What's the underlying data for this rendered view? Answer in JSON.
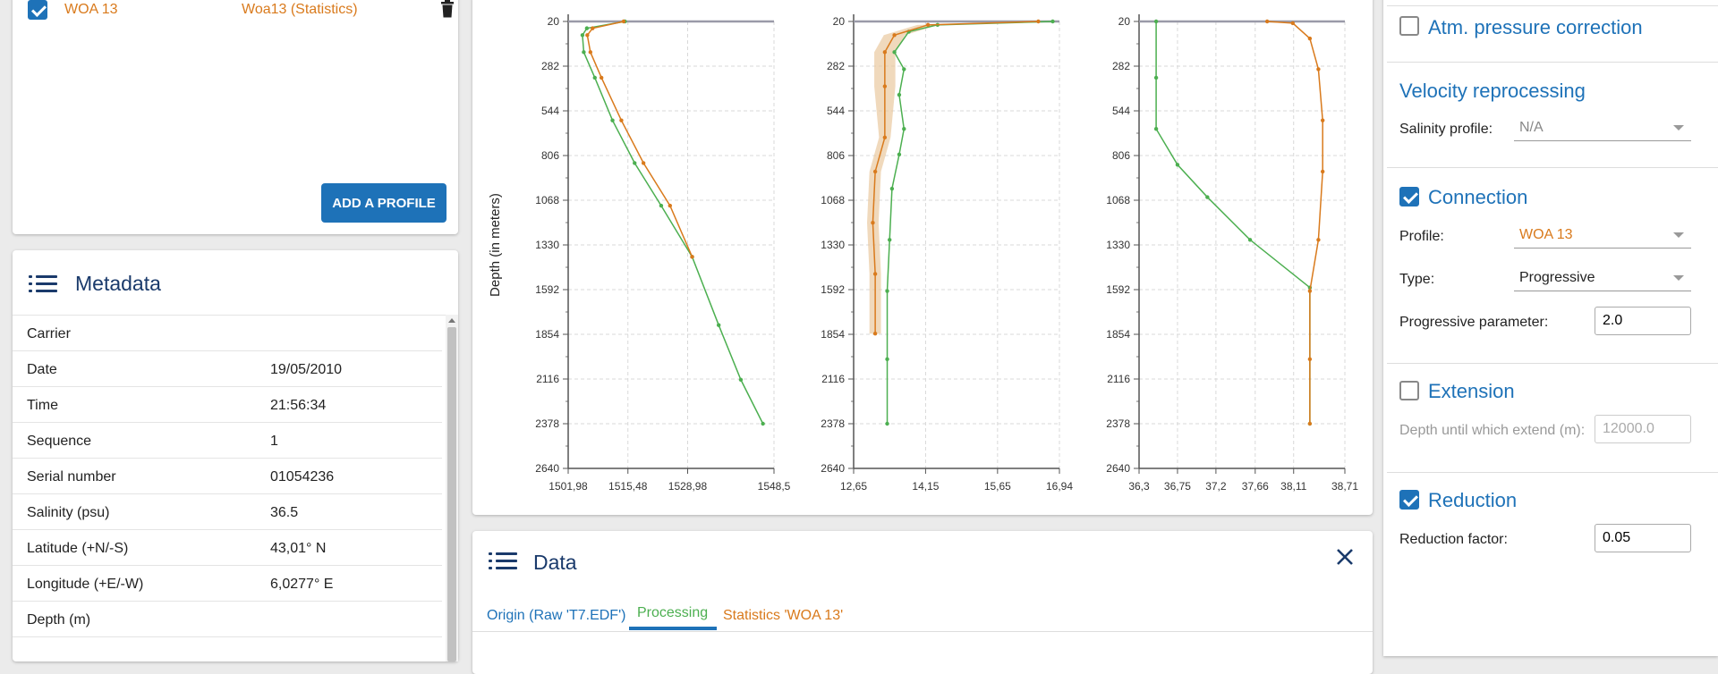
{
  "profiles": {
    "items": [
      {
        "name": "WOA 13",
        "source": "Woa13 (Statistics)",
        "checked": true
      }
    ],
    "add_button": "ADD A PROFILE"
  },
  "metadata": {
    "title": "Metadata",
    "rows": [
      {
        "key": "Carrier",
        "value": ""
      },
      {
        "key": "Date",
        "value": "19/05/2010"
      },
      {
        "key": "Time",
        "value": "21:56:34"
      },
      {
        "key": "Sequence",
        "value": "1"
      },
      {
        "key": "Serial number",
        "value": "01054236"
      },
      {
        "key": "Salinity (psu)",
        "value": "36.5"
      },
      {
        "key": "Latitude (+N/-S)",
        "value": "43,01° N"
      },
      {
        "key": "Longitude (+E/-W)",
        "value": "6,0277° E"
      },
      {
        "key": "Depth (m)",
        "value": ""
      }
    ]
  },
  "charts": {
    "depth_label": "Depth (in meters)",
    "depth_ticks": [
      "20",
      "282",
      "544",
      "806",
      "1068",
      "1330",
      "1592",
      "1854",
      "2116",
      "2378",
      "2640"
    ],
    "panels": [
      {
        "x_ticks": [
          "1501,98",
          "1515,48",
          "1528,98",
          "1548,5"
        ]
      },
      {
        "x_ticks": [
          "12,65",
          "14,15",
          "15,65",
          "16,94"
        ]
      },
      {
        "x_ticks": [
          "36,3",
          "36,75",
          "37,2",
          "37,66",
          "38,11",
          "38,71"
        ]
      }
    ]
  },
  "chart_data": [
    {
      "type": "line",
      "xlim": [
        1501.98,
        1548.5
      ],
      "ylim": [
        20,
        2640
      ],
      "y_axis_inverted": true,
      "series": [
        {
          "color": "#4caf50",
          "points": [
            [
              1514.8,
              20
            ],
            [
              1506.2,
              60
            ],
            [
              1505.2,
              100
            ],
            [
              1505.5,
              200
            ],
            [
              1508,
              350
            ],
            [
              1512,
              600
            ],
            [
              1517,
              850
            ],
            [
              1523,
              1100
            ],
            [
              1530,
              1400
            ],
            [
              1536,
              1800
            ],
            [
              1541,
              2120
            ],
            [
              1546,
              2378
            ]
          ]
        },
        {
          "color": "#d97a1c",
          "points": [
            [
              1514.5,
              20
            ],
            [
              1507.5,
              60
            ],
            [
              1506.3,
              100
            ],
            [
              1507,
              200
            ],
            [
              1509.5,
              350
            ],
            [
              1514,
              600
            ],
            [
              1519,
              850
            ],
            [
              1525,
              1100
            ],
            [
              1530,
              1400
            ]
          ]
        }
      ]
    },
    {
      "type": "line",
      "xlim": [
        12.65,
        16.94
      ],
      "ylim": [
        20,
        2640
      ],
      "y_axis_inverted": true,
      "series": [
        {
          "color": "#4caf50",
          "points": [
            [
              16.8,
              20
            ],
            [
              14.4,
              40
            ],
            [
              13.8,
              80
            ],
            [
              13.5,
              200
            ],
            [
              13.7,
              300
            ],
            [
              13.6,
              450
            ],
            [
              13.7,
              650
            ],
            [
              13.6,
              800
            ],
            [
              13.45,
              1000
            ],
            [
              13.4,
              1300
            ],
            [
              13.35,
              1600
            ],
            [
              13.35,
              2000
            ],
            [
              13.35,
              2378
            ]
          ]
        },
        {
          "color": "#d97a1c",
          "points": [
            [
              16.5,
              20
            ],
            [
              14.2,
              40
            ],
            [
              13.5,
              100
            ],
            [
              13.3,
              200
            ],
            [
              13.3,
              400
            ],
            [
              13.3,
              700
            ],
            [
              13.1,
              900
            ],
            [
              13.05,
              1200
            ],
            [
              13.1,
              1500
            ],
            [
              13.1,
              1850
            ]
          ]
        }
      ],
      "band": {
        "color": "#e9c9a0"
      }
    },
    {
      "type": "line",
      "xlim": [
        36.3,
        38.71
      ],
      "ylim": [
        20,
        2640
      ],
      "y_axis_inverted": true,
      "series": [
        {
          "color": "#4caf50",
          "points": [
            [
              36.5,
              20
            ],
            [
              36.5,
              350
            ],
            [
              36.5,
              650
            ],
            [
              36.75,
              860
            ],
            [
              37.1,
              1050
            ],
            [
              37.6,
              1300
            ],
            [
              38.3,
              1580
            ],
            [
              38.3,
              2378
            ]
          ]
        },
        {
          "color": "#d97a1c",
          "points": [
            [
              37.8,
              20
            ],
            [
              38.1,
              30
            ],
            [
              38.3,
              120
            ],
            [
              38.4,
              300
            ],
            [
              38.45,
              600
            ],
            [
              38.45,
              900
            ],
            [
              38.4,
              1300
            ],
            [
              38.3,
              1600
            ],
            [
              38.3,
              2000
            ],
            [
              38.3,
              2378
            ]
          ]
        }
      ]
    }
  ],
  "data_panel": {
    "title": "Data",
    "tabs": [
      {
        "label": "Origin (Raw 'T7.EDF')",
        "color": "#1e72b8"
      },
      {
        "label": "Processing",
        "color": "#4caf50",
        "active": true
      },
      {
        "label": "Statistics 'WOA 13'",
        "color": "#d97a1c"
      }
    ]
  },
  "settings": {
    "atm_pressure": {
      "label": "Atm. pressure correction",
      "checked": false
    },
    "velocity": {
      "title": "Velocity reprocessing",
      "salinity_label": "Salinity profile:",
      "salinity_value": "N/A"
    },
    "connection": {
      "label": "Connection",
      "checked": true,
      "profile_label": "Profile:",
      "profile_value": "WOA 13",
      "type_label": "Type:",
      "type_value": "Progressive",
      "param_label": "Progressive parameter:",
      "param_value": "2.0"
    },
    "extension": {
      "label": "Extension",
      "checked": false,
      "depth_label": "Depth until which extend (m):",
      "depth_value": "12000.0"
    },
    "reduction": {
      "label": "Reduction",
      "checked": true,
      "factor_label": "Reduction factor:",
      "factor_value": "0.05"
    }
  },
  "colors": {
    "accent": "#1e72b8",
    "green": "#4caf50",
    "orange": "#d97a1c",
    "title": "#1a3a6b"
  }
}
